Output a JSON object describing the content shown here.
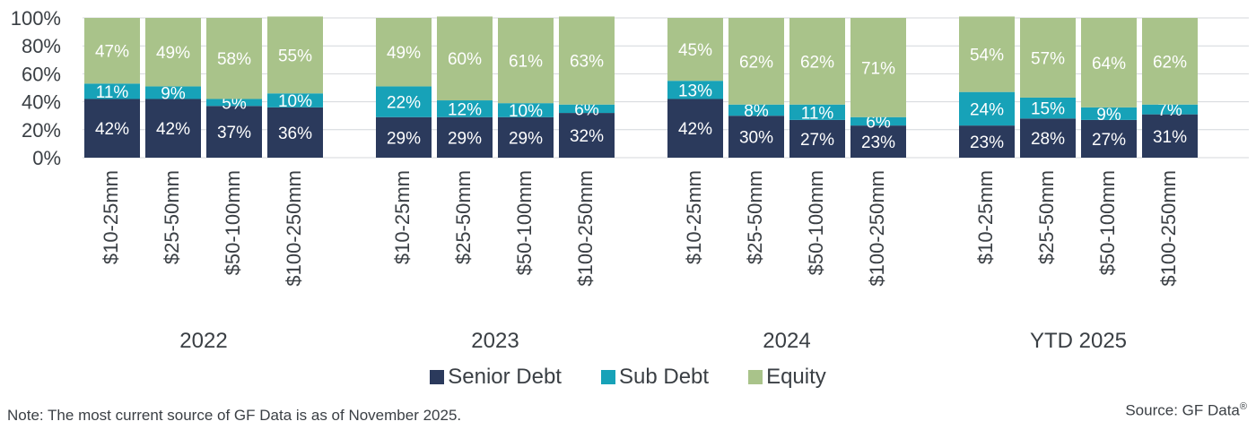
{
  "chart_data": {
    "type": "bar",
    "stacked": true,
    "ylim": [
      0,
      100
    ],
    "yticks": [
      "0%",
      "20%",
      "40%",
      "60%",
      "80%",
      "100%"
    ],
    "grid": true,
    "legend_position": "bottom",
    "groups": [
      {
        "label": "2022",
        "categories": [
          "$10-25mm",
          "$25-50mm",
          "$50-100mm",
          "$100-250mm"
        ],
        "senior": [
          42,
          42,
          37,
          36
        ],
        "sub": [
          11,
          9,
          5,
          10
        ],
        "equity": [
          47,
          49,
          58,
          55
        ]
      },
      {
        "label": "2023",
        "categories": [
          "$10-25mm",
          "$25-50mm",
          "$50-100mm",
          "$100-250mm"
        ],
        "senior": [
          29,
          29,
          29,
          32
        ],
        "sub": [
          22,
          12,
          10,
          6
        ],
        "equity": [
          49,
          60,
          61,
          63
        ]
      },
      {
        "label": "2024",
        "categories": [
          "$10-25mm",
          "$25-50mm",
          "$50-100mm",
          "$100-250mm"
        ],
        "senior": [
          42,
          30,
          27,
          23
        ],
        "sub": [
          13,
          8,
          11,
          6
        ],
        "equity": [
          45,
          62,
          62,
          71
        ]
      },
      {
        "label": "YTD 2025",
        "categories": [
          "$10-25mm",
          "$25-50mm",
          "$50-100mm",
          "$100-250mm"
        ],
        "senior": [
          23,
          28,
          27,
          31
        ],
        "sub": [
          24,
          15,
          9,
          7
        ],
        "equity": [
          54,
          57,
          64,
          62
        ]
      }
    ],
    "series": [
      {
        "name": "Senior Debt",
        "key": "senior",
        "color": "#2b3a5c"
      },
      {
        "name": "Sub Debt",
        "key": "sub",
        "color": "#17a2b8"
      },
      {
        "name": "Equity",
        "key": "equity",
        "color": "#a9c38a"
      }
    ]
  },
  "legend": {
    "senior_label": "Senior Debt",
    "sub_label": "Sub Debt",
    "equity_label": "Equity"
  },
  "note": "Note: The most current source of GF Data is as of November 2025.",
  "source": "Source: GF Data",
  "source_mark": "®"
}
